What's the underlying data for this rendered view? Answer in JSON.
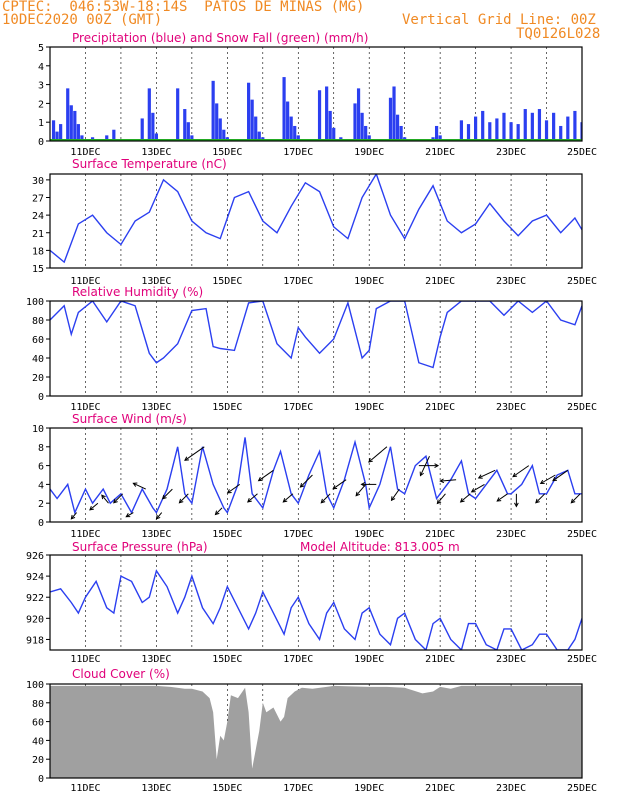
{
  "header": {
    "line1": "CPTEC:  046:53W-18:14S  PATOS DE MINAS (MG)",
    "line2": "10DEC2020 00Z (GMT)",
    "grid_note": "Vertical Grid Line: 00Z",
    "code": "TQ0126L028"
  },
  "colors": {
    "header": "#f08a24",
    "title": "#e0007a",
    "series": "#2b3ff0",
    "snow": "#22aa22",
    "cloud": "#a0a0a0",
    "wind_arrow": "#000000"
  },
  "chart_data": [
    {
      "type": "bar",
      "title": "Precipitation (blue) and Snow Fall (green) (mm/h)",
      "x_tick_labels": [
        "11DEC",
        "13DEC",
        "15DEC",
        "17DEC",
        "19DEC",
        "21DEC",
        "23DEC",
        "25DEC"
      ],
      "xlim_days": [
        10,
        25
      ],
      "ylim": [
        0,
        5
      ],
      "yticks": [
        0,
        1,
        2,
        3,
        4,
        5
      ],
      "x_days": [
        10.1,
        10.2,
        10.3,
        10.5,
        10.6,
        10.7,
        10.8,
        10.9,
        11.2,
        11.6,
        11.8,
        12.2,
        12.6,
        12.8,
        12.9,
        13.0,
        13.2,
        13.6,
        13.8,
        13.9,
        14.0,
        14.2,
        14.6,
        14.7,
        14.8,
        14.9,
        15.0,
        15.2,
        15.6,
        15.7,
        15.8,
        15.9,
        16.0,
        16.2,
        16.6,
        16.7,
        16.8,
        16.9,
        17.0,
        17.2,
        17.6,
        17.8,
        17.9,
        18.0,
        18.2,
        18.6,
        18.7,
        18.8,
        18.9,
        19.0,
        19.6,
        19.7,
        19.8,
        19.9,
        20.0,
        20.6,
        20.8,
        20.9,
        21.0,
        21.6,
        21.8,
        22.0,
        22.2,
        22.4,
        22.6,
        22.8,
        23.0,
        23.2,
        23.4,
        23.6,
        23.8,
        24.0,
        24.2,
        24.4,
        24.6,
        24.8,
        25.0
      ],
      "series": [
        {
          "values": [
            1.1,
            0.5,
            0.9,
            2.8,
            1.9,
            1.6,
            0.9,
            0.3,
            0.2,
            0.3,
            0.6,
            0.1,
            1.2,
            2.8,
            1.5,
            0.4,
            0.1,
            2.8,
            1.7,
            1.0,
            0.3,
            0.1,
            3.2,
            2.0,
            1.2,
            0.6,
            0.2,
            0.1,
            3.1,
            2.2,
            1.3,
            0.5,
            0.2,
            0.1,
            3.4,
            2.1,
            1.3,
            0.8,
            0.3,
            0.1,
            2.7,
            2.9,
            1.6,
            0.7,
            0.2,
            2.0,
            2.8,
            1.5,
            0.8,
            0.3,
            2.3,
            2.9,
            1.4,
            0.8,
            0.2,
            0.1,
            0.2,
            0.8,
            0.3,
            1.1,
            0.9,
            1.3,
            1.6,
            1.0,
            1.2,
            1.5,
            1.0,
            0.9,
            1.7,
            1.5,
            1.7,
            1.1,
            1.5,
            0.8,
            1.3,
            1.6,
            1.0
          ]
        },
        {
          "values": [
            0,
            0,
            0,
            0,
            0,
            0,
            0,
            0,
            0,
            0,
            0,
            0,
            0,
            0,
            0,
            0,
            0,
            0,
            0,
            0,
            0,
            0,
            0,
            0,
            0,
            0,
            0,
            0,
            0,
            0,
            0,
            0,
            0,
            0,
            0,
            0,
            0,
            0,
            0,
            0,
            0,
            0,
            0,
            0,
            0,
            0,
            0,
            0,
            0,
            0,
            0,
            0,
            0,
            0,
            0,
            0,
            0,
            0,
            0,
            0,
            0,
            0,
            0,
            0,
            0,
            0,
            0,
            0,
            0,
            0,
            0,
            0,
            0,
            0,
            0,
            0,
            0
          ]
        }
      ]
    },
    {
      "type": "line",
      "title": "Surface Temperature (nC)",
      "x_tick_labels": [
        "11DEC",
        "13DEC",
        "15DEC",
        "17DEC",
        "19DEC",
        "21DEC",
        "23DEC",
        "25DEC"
      ],
      "xlim_days": [
        10,
        25
      ],
      "ylim": [
        15,
        31
      ],
      "yticks": [
        15,
        18,
        21,
        24,
        27,
        30
      ],
      "x_days": [
        10.0,
        10.4,
        10.8,
        11.2,
        11.6,
        12.0,
        12.4,
        12.8,
        13.2,
        13.6,
        14.0,
        14.4,
        14.8,
        15.2,
        15.6,
        16.0,
        16.4,
        16.8,
        17.2,
        17.6,
        18.0,
        18.4,
        18.8,
        19.2,
        19.6,
        20.0,
        20.4,
        20.8,
        21.2,
        21.6,
        22.0,
        22.4,
        22.8,
        23.2,
        23.6,
        24.0,
        24.4,
        24.8,
        25.0
      ],
      "values": [
        18,
        16,
        22.5,
        24,
        21,
        19,
        23,
        24.5,
        30,
        28,
        23,
        21,
        20,
        27,
        28,
        23,
        21,
        25.5,
        29.5,
        28,
        22,
        20,
        27,
        31,
        24,
        20,
        25,
        29,
        23,
        21,
        22.5,
        26,
        23,
        20.5,
        23,
        24,
        21,
        23.5,
        21.5
      ]
    },
    {
      "type": "line",
      "title": "Relative Humidity (%)",
      "x_tick_labels": [
        "11DEC",
        "13DEC",
        "15DEC",
        "17DEC",
        "19DEC",
        "21DEC",
        "23DEC",
        "25DEC"
      ],
      "xlim_days": [
        10,
        25
      ],
      "ylim": [
        0,
        100
      ],
      "yticks": [
        0,
        20,
        40,
        60,
        80,
        100
      ],
      "x_days": [
        10.0,
        10.4,
        10.6,
        10.8,
        11.2,
        11.6,
        12.0,
        12.4,
        12.8,
        13.0,
        13.2,
        13.6,
        14.0,
        14.4,
        14.6,
        14.8,
        15.2,
        15.6,
        16.0,
        16.4,
        16.8,
        17.0,
        17.2,
        17.6,
        18.0,
        18.4,
        18.8,
        19.0,
        19.2,
        19.6,
        20.0,
        20.4,
        20.8,
        21.0,
        21.2,
        21.6,
        22.0,
        22.4,
        22.8,
        23.2,
        23.6,
        24.0,
        24.4,
        24.8,
        25.0
      ],
      "values": [
        80,
        95,
        65,
        88,
        100,
        78,
        100,
        95,
        45,
        35,
        40,
        55,
        90,
        92,
        52,
        50,
        48,
        98,
        100,
        55,
        40,
        72,
        62,
        45,
        60,
        98,
        40,
        48,
        92,
        100,
        100,
        35,
        30,
        62,
        88,
        100,
        100,
        100,
        85,
        100,
        88,
        100,
        80,
        75,
        95
      ]
    },
    {
      "type": "line",
      "title": "Surface Wind (m/s)",
      "x_tick_labels": [
        "11DEC",
        "13DEC",
        "15DEC",
        "17DEC",
        "19DEC",
        "21DEC",
        "23DEC",
        "25DEC"
      ],
      "xlim_days": [
        10,
        25
      ],
      "ylim": [
        0,
        10
      ],
      "yticks": [
        0,
        2,
        4,
        6,
        8,
        10
      ],
      "x_days": [
        10.0,
        10.2,
        10.5,
        10.7,
        11.0,
        11.2,
        11.5,
        11.7,
        12.0,
        12.3,
        12.6,
        12.9,
        13.0,
        13.3,
        13.6,
        13.8,
        14.0,
        14.3,
        14.6,
        14.9,
        15.0,
        15.3,
        15.5,
        15.7,
        16.0,
        16.3,
        16.5,
        16.8,
        17.0,
        17.3,
        17.6,
        17.8,
        18.0,
        18.3,
        18.6,
        18.9,
        19.0,
        19.3,
        19.6,
        19.8,
        20.0,
        20.3,
        20.6,
        20.9,
        21.0,
        21.3,
        21.6,
        21.8,
        22.0,
        22.3,
        22.6,
        22.9,
        23.0,
        23.3,
        23.6,
        23.8,
        24.0,
        24.3,
        24.6,
        24.8,
        25.0
      ],
      "values": [
        3.5,
        2.5,
        4.0,
        1.0,
        3.5,
        2.0,
        3.5,
        2.0,
        3.0,
        1.0,
        3.5,
        1.5,
        1.0,
        3.5,
        8.0,
        3.0,
        2.0,
        8.0,
        4.0,
        1.5,
        1.0,
        4.0,
        9.0,
        3.0,
        1.5,
        5.5,
        7.5,
        3.0,
        2.0,
        5.0,
        7.5,
        3.0,
        1.5,
        4.5,
        8.5,
        4.0,
        1.5,
        4.0,
        8.0,
        3.5,
        3.0,
        6.0,
        7.0,
        2.5,
        3.0,
        4.5,
        6.5,
        3.0,
        2.5,
        4.0,
        5.5,
        3.0,
        3.0,
        4.0,
        6.0,
        3.0,
        3.0,
        5.0,
        5.5,
        3.0,
        3.0
      ],
      "wind_arrow_days": [
        10.75,
        11.35,
        11.65,
        12.05,
        12.35,
        12.7,
        13.15,
        13.45,
        13.9,
        14.35,
        14.85,
        15.35,
        15.85,
        16.3,
        16.85,
        17.4,
        17.9,
        18.35,
        18.9,
        19.2,
        19.5,
        19.85,
        20.4,
        20.7,
        21.15,
        21.45,
        21.85,
        22.25,
        22.55,
        22.9,
        23.15,
        23.5,
        23.95,
        24.25,
        24.6,
        24.95
      ],
      "wind_arrow_directions_deg": [
        230,
        220,
        130,
        225,
        210,
        155,
        230,
        225,
        225,
        215,
        225,
        215,
        220,
        215,
        220,
        225,
        225,
        215,
        230,
        180,
        220,
        235,
        0,
        245,
        230,
        185,
        220,
        210,
        205,
        215,
        270,
        215,
        225,
        210,
        215,
        225
      ]
    },
    {
      "type": "line",
      "title": "Surface Pressure (hPa)",
      "annotation": "Model Altitude: 813.005 m",
      "x_tick_labels": [
        "11DEC",
        "13DEC",
        "15DEC",
        "17DEC",
        "19DEC",
        "21DEC",
        "23DEC",
        "25DEC"
      ],
      "xlim_days": [
        10,
        25
      ],
      "ylim": [
        917,
        926
      ],
      "yticks": [
        918,
        920,
        922,
        924,
        926
      ],
      "x_days": [
        10.0,
        10.3,
        10.6,
        10.8,
        11.0,
        11.3,
        11.6,
        11.8,
        12.0,
        12.3,
        12.6,
        12.8,
        13.0,
        13.3,
        13.6,
        13.8,
        14.0,
        14.3,
        14.6,
        14.8,
        15.0,
        15.3,
        15.6,
        15.8,
        16.0,
        16.3,
        16.6,
        16.8,
        17.0,
        17.3,
        17.6,
        17.8,
        18.0,
        18.3,
        18.6,
        18.8,
        19.0,
        19.3,
        19.6,
        19.8,
        20.0,
        20.3,
        20.6,
        20.8,
        21.0,
        21.3,
        21.6,
        21.8,
        22.0,
        22.3,
        22.6,
        22.8,
        23.0,
        23.3,
        23.6,
        23.8,
        24.0,
        24.3,
        24.6,
        24.8,
        25.0
      ],
      "values": [
        922.5,
        922.8,
        921.5,
        920.5,
        922.0,
        923.5,
        921.0,
        920.5,
        924.0,
        923.5,
        921.5,
        922.0,
        924.5,
        923.0,
        920.5,
        922.0,
        924.0,
        921.0,
        919.5,
        921.0,
        923.0,
        921.0,
        919.0,
        920.5,
        922.5,
        920.5,
        918.5,
        921.0,
        922.0,
        919.5,
        918.0,
        920.5,
        921.5,
        919.0,
        918.0,
        920.5,
        921.0,
        918.5,
        917.5,
        920.0,
        920.5,
        918.0,
        917.0,
        919.5,
        920.0,
        918.0,
        917.0,
        919.5,
        919.5,
        917.5,
        917.0,
        919.0,
        919.0,
        917.0,
        917.5,
        918.5,
        918.5,
        917.0,
        917.0,
        918.0,
        920.0
      ]
    },
    {
      "type": "area",
      "title": "Cloud Cover (%)",
      "x_tick_labels": [
        "11DEC",
        "13DEC",
        "15DEC",
        "17DEC",
        "19DEC",
        "21DEC",
        "23DEC",
        "25DEC"
      ],
      "xlim_days": [
        10,
        25
      ],
      "ylim": [
        0,
        100
      ],
      "yticks": [
        0,
        20,
        40,
        60,
        80,
        100
      ],
      "x_days": [
        10.0,
        13.0,
        13.4,
        13.8,
        14.0,
        14.3,
        14.5,
        14.6,
        14.7,
        14.8,
        14.9,
        15.0,
        15.1,
        15.3,
        15.5,
        15.6,
        15.7,
        15.8,
        15.9,
        16.0,
        16.1,
        16.3,
        16.5,
        16.6,
        16.7,
        16.9,
        17.1,
        17.4,
        17.8,
        18.0,
        19.0,
        19.5,
        20.0,
        20.5,
        20.8,
        21.0,
        21.3,
        21.6,
        22.0,
        23.0,
        24.0,
        25.0
      ],
      "values": [
        98,
        98,
        97,
        95,
        95,
        92,
        85,
        70,
        20,
        45,
        40,
        60,
        88,
        85,
        96,
        70,
        10,
        30,
        50,
        80,
        70,
        75,
        60,
        65,
        85,
        92,
        96,
        95,
        97,
        98,
        97,
        97,
        96,
        90,
        92,
        97,
        95,
        98,
        98,
        98,
        98,
        98
      ]
    }
  ]
}
